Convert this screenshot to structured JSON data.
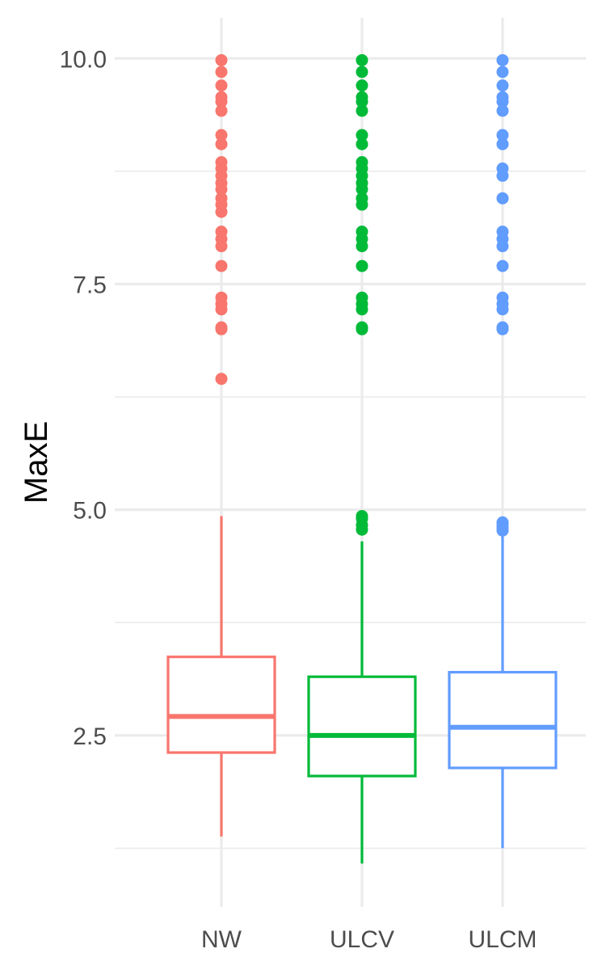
{
  "chart_data": {
    "type": "boxplot",
    "title": "",
    "xlabel": "",
    "ylabel": "MaxE",
    "ylim": [
      0.6,
      10.45
    ],
    "y_ticks": [
      "2.5",
      "5.0",
      "7.5",
      "10.0"
    ],
    "y_minor_gridlines": [
      1.25,
      3.75,
      6.25,
      8.75
    ],
    "grid": true,
    "legend": "none",
    "categories": [
      "NW",
      "ULCV",
      "ULCM"
    ],
    "series": [
      {
        "category": "NW",
        "color": "#F8766D",
        "whisker_low": 1.38,
        "q1": 2.31,
        "median": 2.71,
        "q3": 3.37,
        "whisker_high": 4.93,
        "outliers": [
          6.45,
          7.0,
          7.02,
          7.22,
          7.28,
          7.35,
          7.7,
          7.92,
          8.0,
          8.08,
          8.3,
          8.38,
          8.45,
          8.55,
          8.62,
          8.7,
          8.78,
          8.85,
          9.05,
          9.15,
          9.42,
          9.52,
          9.57,
          9.7,
          9.85,
          9.98
        ]
      },
      {
        "category": "ULCV",
        "color": "#00BA38",
        "whisker_low": 1.08,
        "q1": 2.05,
        "median": 2.5,
        "q3": 3.15,
        "whisker_high": 4.65,
        "outliers": [
          4.78,
          4.83,
          4.9,
          4.93,
          7.0,
          7.02,
          7.22,
          7.28,
          7.35,
          7.7,
          7.92,
          8.0,
          8.08,
          8.38,
          8.45,
          8.55,
          8.62,
          8.7,
          8.78,
          8.85,
          9.05,
          9.15,
          9.42,
          9.52,
          9.57,
          9.7,
          9.85,
          9.98
        ]
      },
      {
        "category": "ULCM",
        "color": "#619CFF",
        "whisker_low": 1.25,
        "q1": 2.14,
        "median": 2.59,
        "q3": 3.2,
        "whisker_high": 4.72,
        "outliers": [
          4.77,
          4.8,
          4.83,
          4.86,
          7.0,
          7.02,
          7.22,
          7.28,
          7.35,
          7.7,
          7.92,
          8.0,
          8.08,
          8.45,
          8.7,
          8.78,
          9.05,
          9.15,
          9.42,
          9.52,
          9.57,
          9.7,
          9.85,
          9.98
        ]
      }
    ]
  }
}
